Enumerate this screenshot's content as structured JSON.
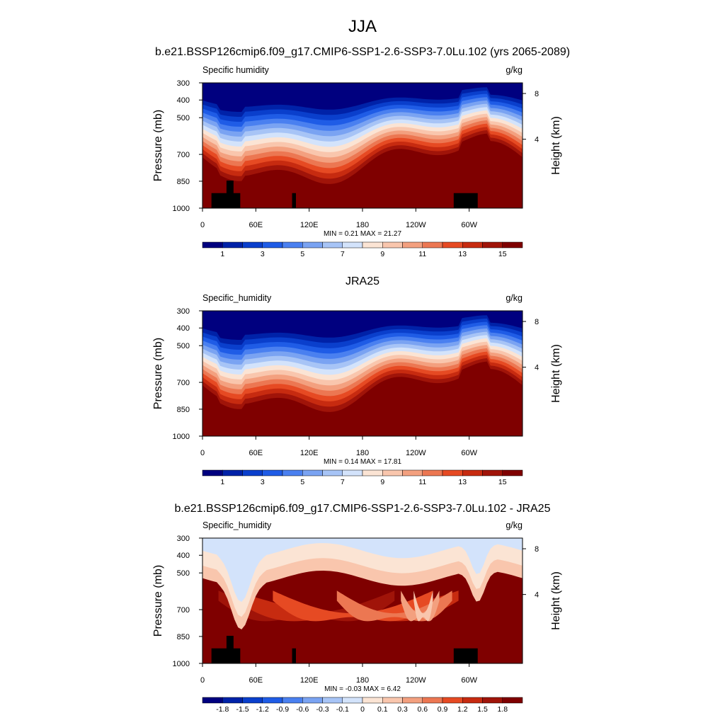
{
  "page_title": "JJA",
  "palettes": {
    "humidity": [
      "#00007f",
      "#0022a8",
      "#0a3fcc",
      "#1f5ce6",
      "#4a80f0",
      "#7aa3f2",
      "#a7c4f6",
      "#d3e3fb",
      "#fbe4d4",
      "#f9c6ad",
      "#f3a07f",
      "#ec7752",
      "#e64a23",
      "#c72b10",
      "#a01409",
      "#7f0000"
    ],
    "difference": [
      "#00007f",
      "#0022a8",
      "#0a3fcc",
      "#1f5ce6",
      "#4a80f0",
      "#7aa3f2",
      "#a7c4f6",
      "#d3e3fb",
      "#fbe4d4",
      "#f9c6ad",
      "#f3a07f",
      "#ec7752",
      "#e64a23",
      "#c72b10",
      "#a01409",
      "#7f0000"
    ]
  },
  "chart_data": [
    {
      "type": "heatmap",
      "title": "b.e21.BSSP126cmip6.f09_g17.CMIP6-SSP1-2.6-SSP3-7.0Lu.102 (yrs 2065-2089)",
      "left_label": "Specific humidity",
      "units": "g/kg",
      "ylabel": "Pressure (mb)",
      "y2label": "Height (km)",
      "x_tick_labels": [
        "0",
        "60E",
        "120E",
        "180",
        "120W",
        "60W"
      ],
      "y_tick_labels": [
        "300",
        "400",
        "500",
        "700",
        "850",
        "1000"
      ],
      "y2_tick_labels": [
        "8",
        "4"
      ],
      "ylim": [
        1000,
        300
      ],
      "stats": {
        "min": 0.21,
        "max": 21.27
      },
      "stats_text": "MIN =   0.21  MAX =  21.27",
      "colorbar_labels": [
        "1",
        "3",
        "5",
        "7",
        "9",
        "11",
        "13",
        "15"
      ],
      "palette": "humidity",
      "orography": true
    },
    {
      "type": "heatmap",
      "title": "JRA25",
      "left_label": "Specific_humidity",
      "units": "g/kg",
      "ylabel": "Pressure (mb)",
      "y2label": "Height (km)",
      "x_tick_labels": [
        "0",
        "60E",
        "120E",
        "180",
        "120W",
        "60W"
      ],
      "y_tick_labels": [
        "300",
        "400",
        "500",
        "700",
        "850",
        "1000"
      ],
      "y2_tick_labels": [
        "8",
        "4"
      ],
      "ylim": [
        1000,
        300
      ],
      "stats": {
        "min": 0.14,
        "max": 17.81
      },
      "stats_text": "MIN =   0.14  MAX =  17.81",
      "colorbar_labels": [
        "1",
        "3",
        "5",
        "7",
        "9",
        "11",
        "13",
        "15"
      ],
      "palette": "humidity",
      "orography": false
    },
    {
      "type": "heatmap",
      "title": "b.e21.BSSP126cmip6.f09_g17.CMIP6-SSP1-2.6-SSP3-7.0Lu.102 - JRA25",
      "left_label": "Specific_humidity",
      "units": "g/kg",
      "ylabel": "Pressure (mb)",
      "y2label": "Height (km)",
      "x_tick_labels": [
        "0",
        "60E",
        "120E",
        "180",
        "120W",
        "60W"
      ],
      "y_tick_labels": [
        "300",
        "400",
        "500",
        "700",
        "850",
        "1000"
      ],
      "y2_tick_labels": [
        "8",
        "4"
      ],
      "ylim": [
        1000,
        300
      ],
      "stats": {
        "min": -0.03,
        "max": 6.42
      },
      "stats_text": "MIN =  -0.03  MAX =   6.42",
      "colorbar_labels": [
        "-1.8",
        "-1.5",
        "-1.2",
        "-0.9",
        "-0.6",
        "-0.3",
        "-0.1",
        "0",
        "0.1",
        "0.3",
        "0.6",
        "0.9",
        "1.2",
        "1.5",
        "1.8"
      ],
      "palette": "difference",
      "orography": true
    }
  ]
}
